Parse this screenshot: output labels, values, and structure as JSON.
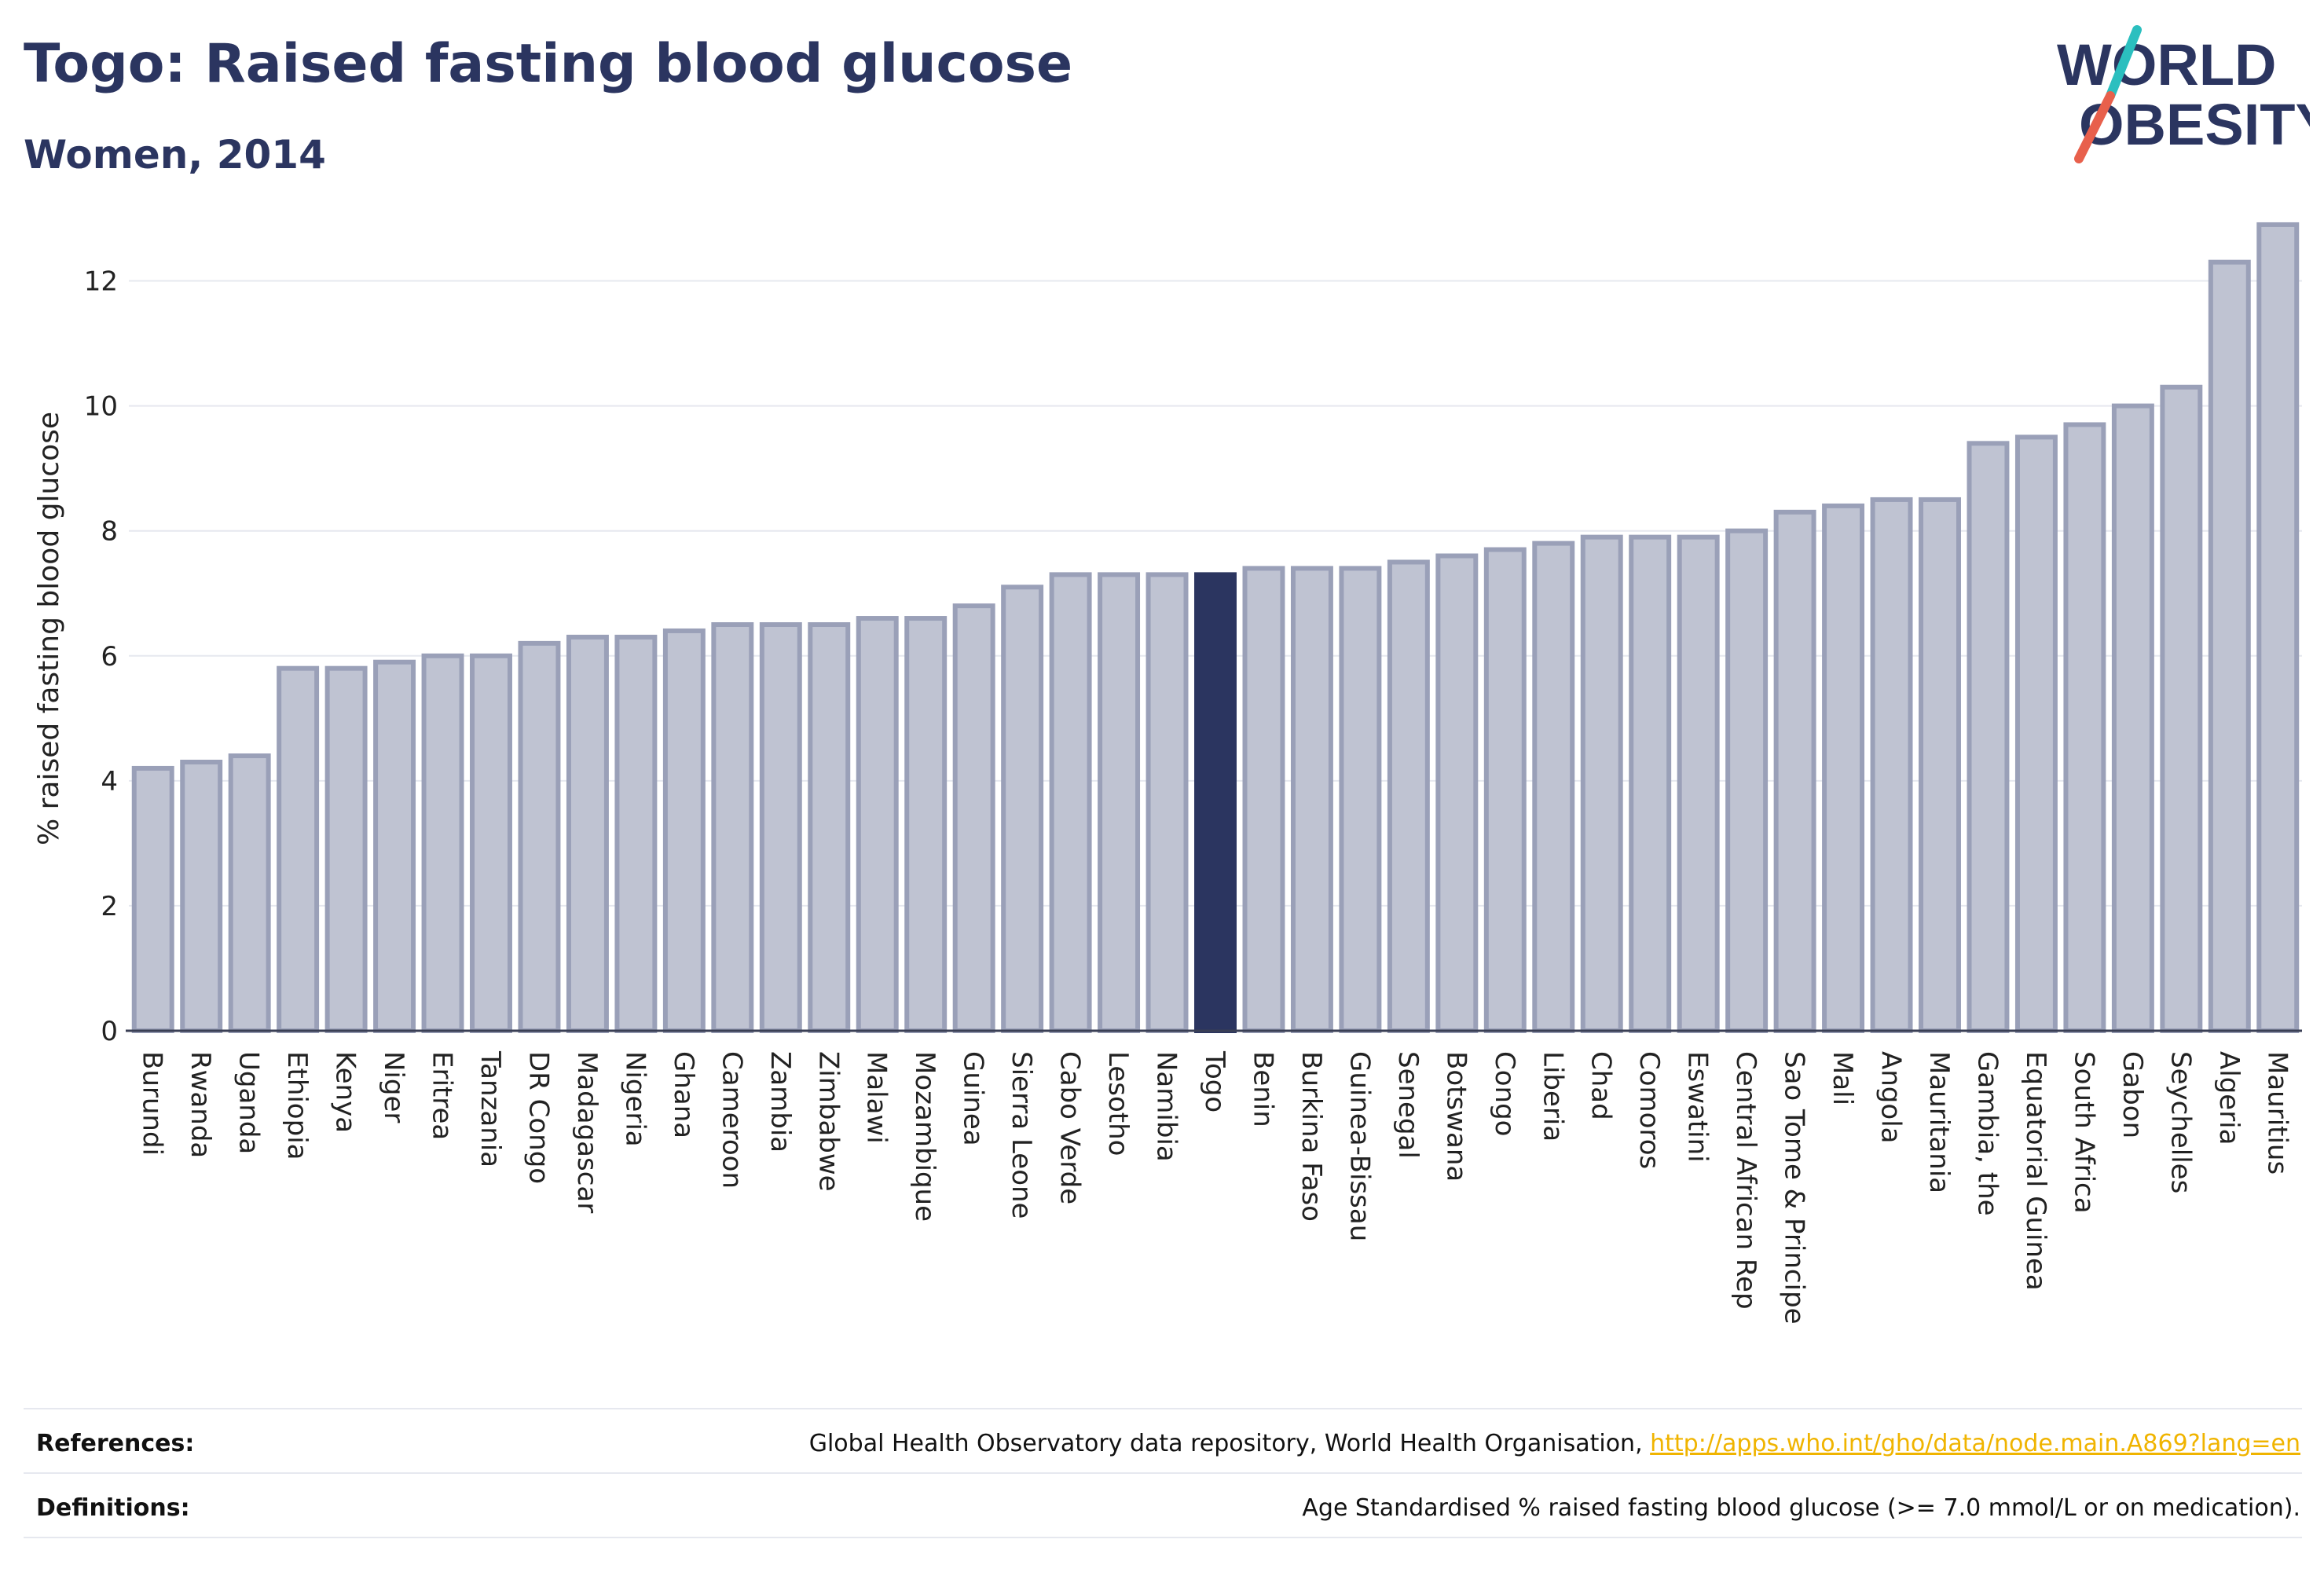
{
  "header": {
    "title": "Togo: Raised fasting blood glucose",
    "subtitle": "Women, 2014"
  },
  "logo": {
    "line1": "WORLD",
    "line2": "OBESITY",
    "colors": {
      "text": "#2b3560",
      "slash_top": "#2bbfbf",
      "slash_bottom": "#e8604c"
    }
  },
  "chart_data": {
    "type": "bar",
    "ylabel": "% raised fasting blood glucose",
    "xlabel": "",
    "ylim": [
      0,
      13
    ],
    "yticks": [
      0,
      2,
      4,
      6,
      8,
      10,
      12
    ],
    "grid": true,
    "highlight": "Togo",
    "colors": {
      "bar": "#bfc3d2",
      "bar_edge": "#9aa0b8",
      "highlight": "#2b3560",
      "grid": "#e6e8ef"
    },
    "categories": [
      "Burundi",
      "Rwanda",
      "Uganda",
      "Ethiopia",
      "Kenya",
      "Niger",
      "Eritrea",
      "Tanzania",
      "DR Congo",
      "Madagascar",
      "Nigeria",
      "Ghana",
      "Cameroon",
      "Zambia",
      "Zimbabwe",
      "Malawi",
      "Mozambique",
      "Guinea",
      "Sierra Leone",
      "Cabo Verde",
      "Lesotho",
      "Namibia",
      "Togo",
      "Benin",
      "Burkina Faso",
      "Guinea-Bissau",
      "Senegal",
      "Botswana",
      "Congo",
      "Liberia",
      "Chad",
      "Comoros",
      "Eswatini",
      "Central African Rep",
      "Sao Tome & Principe",
      "Mali",
      "Angola",
      "Mauritania",
      "Gambia, the",
      "Equatorial Guinea",
      "South Africa",
      "Gabon",
      "Seychelles",
      "Algeria",
      "Mauritius"
    ],
    "values": [
      4.2,
      4.3,
      4.4,
      5.8,
      5.8,
      5.9,
      6.0,
      6.0,
      6.2,
      6.3,
      6.3,
      6.4,
      6.5,
      6.5,
      6.5,
      6.6,
      6.6,
      6.8,
      7.1,
      7.3,
      7.3,
      7.3,
      7.3,
      7.4,
      7.4,
      7.4,
      7.5,
      7.6,
      7.7,
      7.8,
      7.9,
      7.9,
      7.9,
      8.0,
      8.3,
      8.4,
      8.5,
      8.5,
      9.4,
      9.5,
      9.7,
      10.0,
      10.3,
      12.3,
      12.9
    ]
  },
  "footer": {
    "references_label": "References:",
    "references_text": "Global Health Observatory data repository, World Health Organisation, ",
    "references_link": "http://apps.who.int/gho/data/node.main.A869?lang=en",
    "definitions_label": "Definitions:",
    "definitions_text": "Age Standardised % raised fasting blood glucose (>= 7.0 mmol/L or on medication)."
  }
}
